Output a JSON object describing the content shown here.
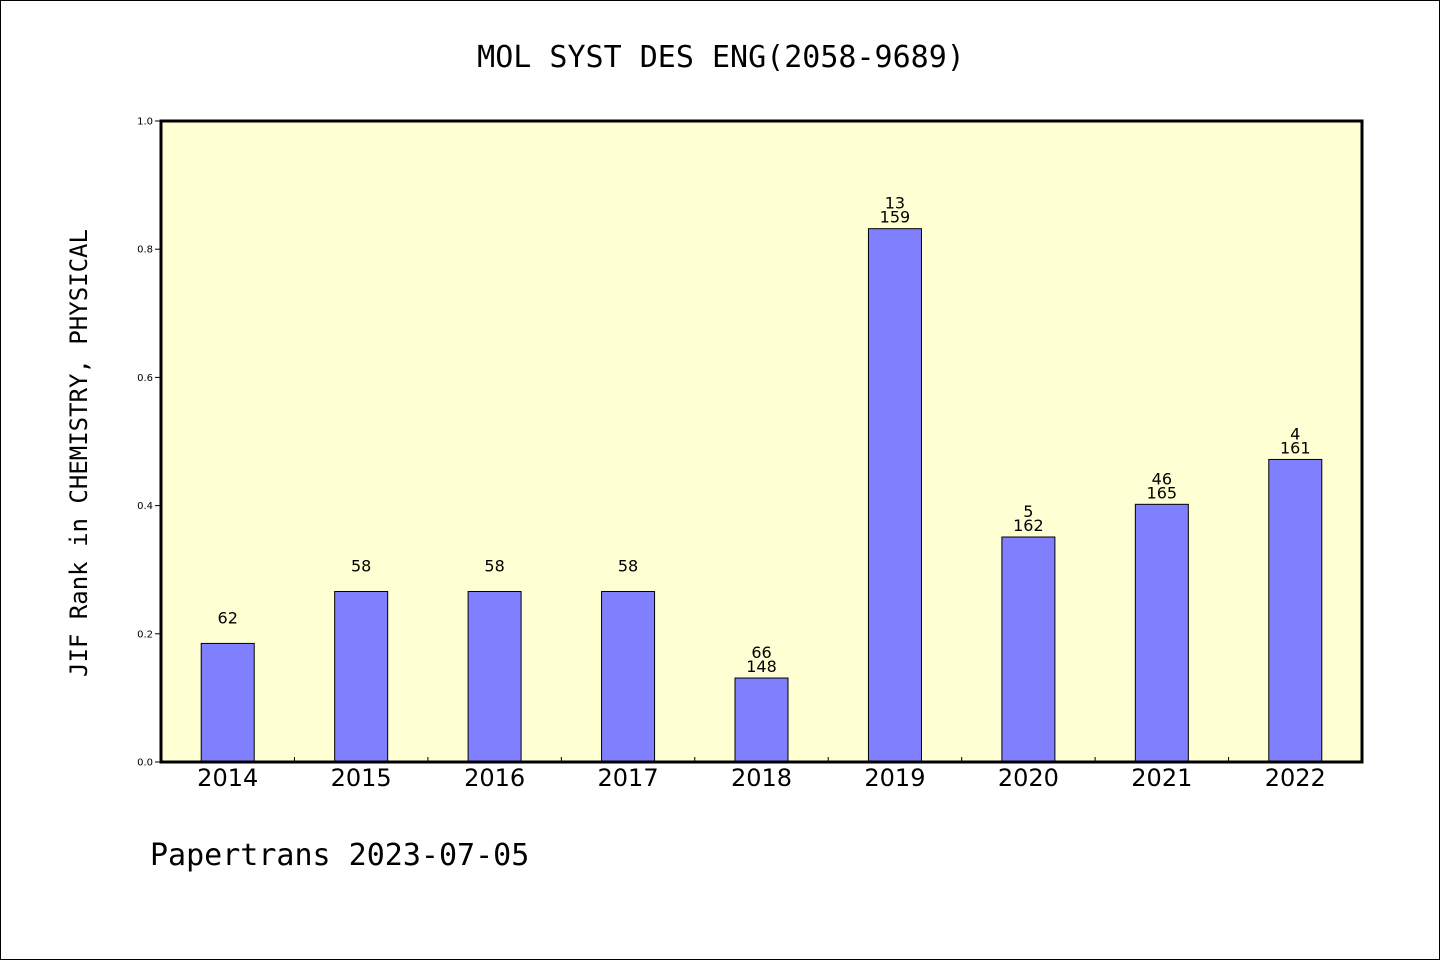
{
  "chart_data": {
    "type": "bar",
    "title": "MOL SYST DES ENG(2058-9689)",
    "xlabel": "",
    "ylabel": "JIF Rank in CHEMISTRY, PHYSICAL",
    "ylim": [
      0.0,
      1.0
    ],
    "yticks": [
      "0.0",
      "0.2",
      "0.4",
      "0.6",
      "0.8",
      "1.0"
    ],
    "categories": [
      "2014",
      "2015",
      "2016",
      "2017",
      "2018",
      "2019",
      "2020",
      "2021",
      "2022"
    ],
    "values": [
      0.185,
      0.266,
      0.266,
      0.266,
      0.131,
      0.832,
      0.351,
      0.402,
      0.472
    ],
    "labels": [
      [
        "62"
      ],
      [
        "58"
      ],
      [
        "58"
      ],
      [
        "58"
      ],
      [
        "66",
        "148"
      ],
      [
        "13",
        "159"
      ],
      [
        "5",
        "162"
      ],
      [
        "46",
        "165"
      ],
      [
        "4",
        "161"
      ]
    ],
    "grid": false,
    "legend": "none",
    "colors": {
      "bar_fill": "#8080ff",
      "bar_stroke": "#000000",
      "plot_background": "#ffffd4",
      "axis": "#000000",
      "page_background": "#ffffff"
    }
  },
  "footer": {
    "text": "Papertrans 2023-07-05"
  }
}
